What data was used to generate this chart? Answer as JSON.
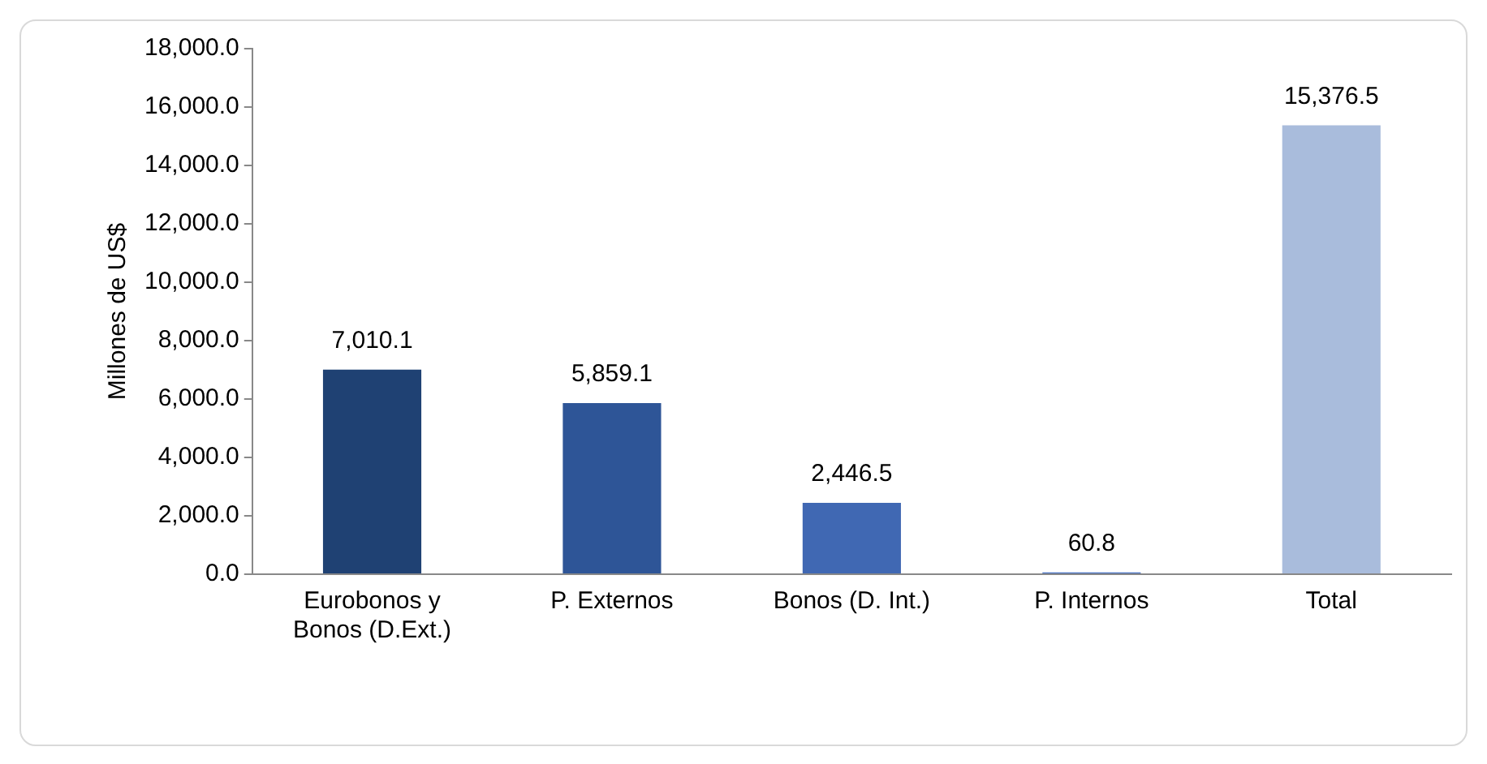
{
  "chart_data": {
    "type": "bar",
    "ylabel": "Millones de US$",
    "categories": [
      "Eurobonos y Bonos (D.Ext.)",
      "P. Externos",
      "Bonos (D. Int.)",
      "P. Internos",
      "Total"
    ],
    "values": [
      7010.1,
      5859.1,
      2446.5,
      60.8,
      15376.5
    ],
    "colors": [
      "#1f4173",
      "#2e5597",
      "#4068b3",
      "#4a73c4",
      "#a9bcdc"
    ],
    "value_labels": [
      "7,010.1",
      "5,859.1",
      "2,446.5",
      "60.8",
      "15,376.5"
    ],
    "ylim": [
      0,
      18000
    ],
    "yticks": [
      {
        "value": 0,
        "label": "0.0"
      },
      {
        "value": 2000,
        "label": "2,000.0"
      },
      {
        "value": 4000,
        "label": "4,000.0"
      },
      {
        "value": 6000,
        "label": "6,000.0"
      },
      {
        "value": 8000,
        "label": "8,000.0"
      },
      {
        "value": 10000,
        "label": "10,000.0"
      },
      {
        "value": 12000,
        "label": "12,000.0"
      },
      {
        "value": 14000,
        "label": "14,000.0"
      },
      {
        "value": 16000,
        "label": "16,000.0"
      },
      {
        "value": 18000,
        "label": "18,000.0"
      }
    ],
    "grid": false,
    "legend": false
  }
}
